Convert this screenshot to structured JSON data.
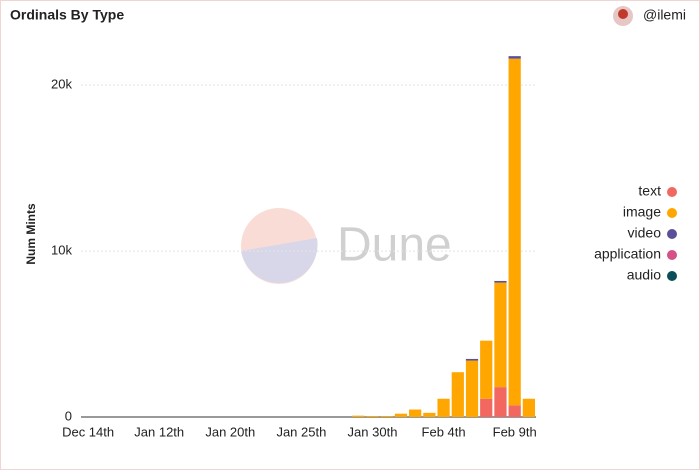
{
  "chart_data": {
    "type": "bar",
    "stacked": true,
    "title": "Ordinals By Type",
    "author": "@ilemi",
    "watermark": "Dune",
    "ylabel": "Num Mints",
    "categories": [
      "Dec 14th",
      null,
      null,
      null,
      null,
      "Jan 12th",
      null,
      null,
      null,
      null,
      "Jan 20th",
      null,
      null,
      null,
      null,
      "Jan 25th",
      null,
      null,
      null,
      null,
      "Jan 30th",
      null,
      null,
      null,
      null,
      "Feb 4th",
      null,
      null,
      null,
      null,
      "Feb 9th",
      null
    ],
    "series": [
      {
        "name": "text",
        "color": "#f2675f",
        "values": [
          0,
          0,
          0,
          0,
          0,
          0,
          0,
          0,
          0,
          0,
          0,
          0,
          0,
          0,
          0,
          0,
          0,
          0,
          0,
          0,
          0,
          0,
          0,
          0,
          0,
          0,
          0,
          0,
          1100,
          1800,
          700,
          0
        ]
      },
      {
        "name": "image",
        "color": "#ffa600",
        "values": [
          0,
          0,
          0,
          0,
          0,
          0,
          0,
          0,
          0,
          0,
          0,
          0,
          0,
          0,
          0,
          0,
          0,
          0,
          0,
          80,
          60,
          60,
          200,
          450,
          250,
          1100,
          2700,
          3400,
          3500,
          6300,
          20900,
          1100
        ]
      },
      {
        "name": "video",
        "color": "#5b4f9c",
        "values": [
          0,
          0,
          0,
          0,
          0,
          0,
          0,
          0,
          0,
          0,
          0,
          0,
          0,
          0,
          0,
          0,
          0,
          0,
          0,
          0,
          0,
          0,
          0,
          0,
          0,
          0,
          0,
          100,
          0,
          100,
          150,
          0
        ]
      },
      {
        "name": "application",
        "color": "#d45087",
        "values": [
          0,
          0,
          0,
          0,
          0,
          0,
          0,
          0,
          0,
          0,
          0,
          0,
          0,
          0,
          0,
          0,
          0,
          0,
          0,
          0,
          0,
          0,
          0,
          0,
          0,
          0,
          0,
          0,
          0,
          0,
          0,
          0
        ]
      },
      {
        "name": "audio",
        "color": "#0d4d5a",
        "values": [
          0,
          0,
          0,
          0,
          0,
          0,
          0,
          0,
          0,
          0,
          0,
          0,
          0,
          0,
          0,
          0,
          0,
          0,
          0,
          0,
          0,
          0,
          0,
          0,
          0,
          0,
          0,
          0,
          0,
          0,
          0,
          0
        ]
      }
    ],
    "ylim": [
      0,
      22000
    ],
    "yticks": [
      0,
      {
        "value": 10000,
        "label": "10k"
      },
      {
        "value": 20000,
        "label": "20k"
      }
    ],
    "grid": true,
    "legend": "right"
  }
}
